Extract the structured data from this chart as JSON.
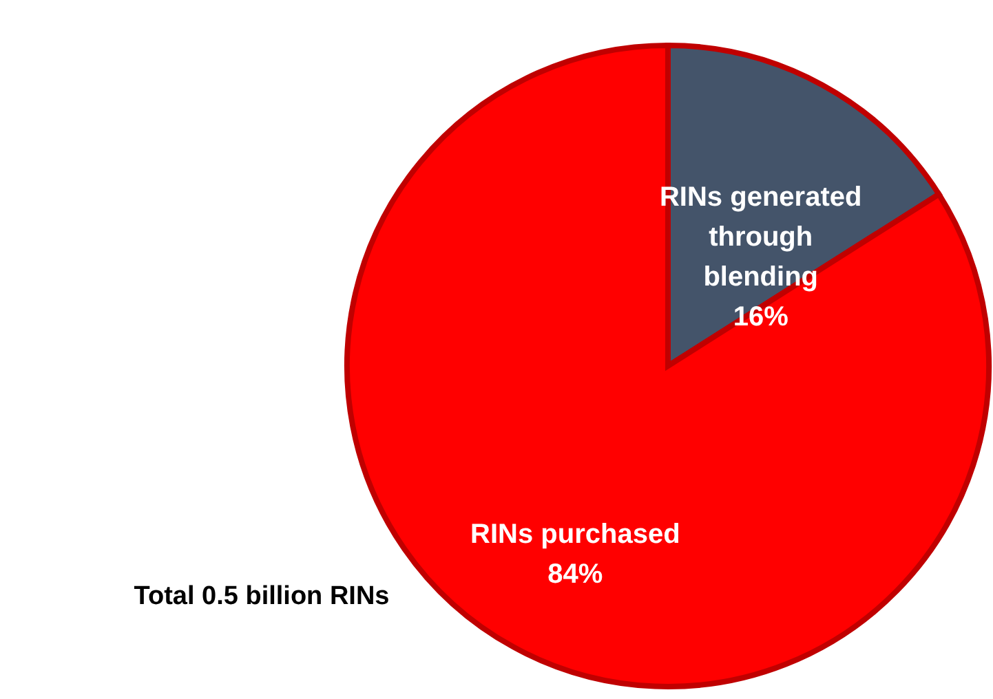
{
  "chart_data": {
    "type": "pie",
    "categories": [
      "RINs generated through blending",
      "RINs purchased"
    ],
    "values": [
      16,
      84
    ],
    "colors": [
      "#44546a",
      "#ff0000"
    ],
    "value_labels": [
      "16%",
      "84%"
    ],
    "annotations": [
      "Total 0.5 billion RINs"
    ]
  }
}
